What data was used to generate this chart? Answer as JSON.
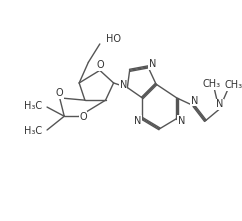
{
  "bg_color": "#ffffff",
  "line_color": "#555555",
  "text_color": "#333333",
  "lw": 1.0,
  "fontsize": 6.5,
  "figsize": [
    2.42,
    2.21
  ],
  "dpi": 100,
  "xlim": [
    0,
    10
  ],
  "ylim": [
    0,
    9.1
  ]
}
